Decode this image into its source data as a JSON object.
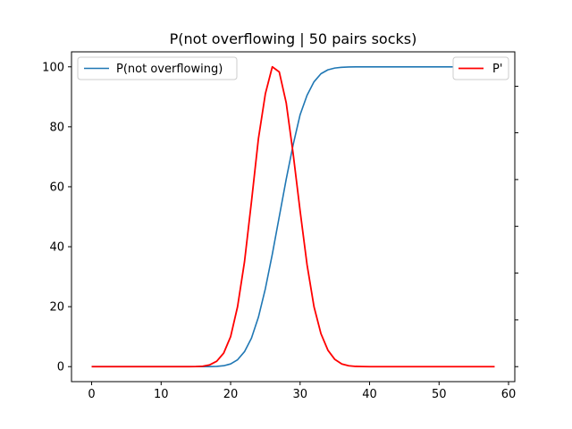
{
  "chart_data": {
    "type": "line",
    "title": "P(not overflowing | 50 pairs socks)",
    "xlabel": "",
    "ylabel": "",
    "xlim": [
      -2.9,
      60.9
    ],
    "ylim": [
      -5,
      105
    ],
    "xticks": [
      0,
      10,
      20,
      30,
      40,
      50,
      60
    ],
    "yticks": [
      0,
      20,
      40,
      60,
      80,
      100
    ],
    "grid": false,
    "series": [
      {
        "name": "P(not overflowing)",
        "axis": "left",
        "color": "#1f77b4",
        "legend": "top-left",
        "x": [
          0,
          1,
          2,
          3,
          4,
          5,
          6,
          7,
          8,
          9,
          10,
          11,
          12,
          13,
          14,
          15,
          16,
          17,
          18,
          19,
          20,
          21,
          22,
          23,
          24,
          25,
          26,
          27,
          28,
          29,
          30,
          31,
          32,
          33,
          34,
          35,
          36,
          37,
          38,
          39,
          40,
          41,
          42,
          43,
          44,
          45,
          46,
          47,
          48,
          49,
          50,
          51,
          52,
          53,
          54,
          55,
          56,
          57,
          58
        ],
        "y": [
          0,
          0,
          0,
          0,
          0,
          0,
          0,
          0,
          0,
          0,
          0,
          0,
          0,
          0,
          0,
          0,
          0,
          0.02,
          0.08,
          0.3,
          0.9,
          2.3,
          5,
          9.5,
          16.5,
          26,
          37.5,
          50,
          62.5,
          74,
          84,
          90.5,
          95,
          97.7,
          99,
          99.6,
          99.85,
          99.95,
          100,
          100,
          100,
          100,
          100,
          100,
          100,
          100,
          100,
          100,
          100,
          100,
          100,
          100,
          100,
          100,
          100,
          100,
          100,
          100,
          100
        ]
      },
      {
        "name": "P'",
        "axis": "right",
        "color": "#ff0000",
        "legend": "top-right",
        "x": [
          0,
          1,
          2,
          3,
          4,
          5,
          6,
          7,
          8,
          9,
          10,
          11,
          12,
          13,
          14,
          15,
          16,
          17,
          18,
          19,
          20,
          21,
          22,
          23,
          24,
          25,
          26,
          27,
          28,
          29,
          30,
          31,
          32,
          33,
          34,
          35,
          36,
          37,
          38,
          39,
          40,
          41,
          42,
          43,
          44,
          45,
          46,
          47,
          48,
          49,
          50,
          51,
          52,
          53,
          54,
          55,
          56,
          57,
          58
        ],
        "y": [
          0,
          0,
          0,
          0,
          0,
          0,
          0,
          0,
          0,
          0,
          0,
          0,
          0,
          0,
          0,
          0.02,
          0.15,
          0.6,
          1.8,
          4.5,
          10,
          20,
          35,
          55,
          76,
          91,
          100,
          98.3,
          88,
          71,
          52,
          34,
          20,
          11,
          5.5,
          2.4,
          0.9,
          0.3,
          0.08,
          0.02,
          0,
          0,
          0,
          0,
          0,
          0,
          0,
          0,
          0,
          0,
          0,
          0,
          0,
          0,
          0,
          0,
          0,
          0,
          0
        ]
      }
    ]
  }
}
